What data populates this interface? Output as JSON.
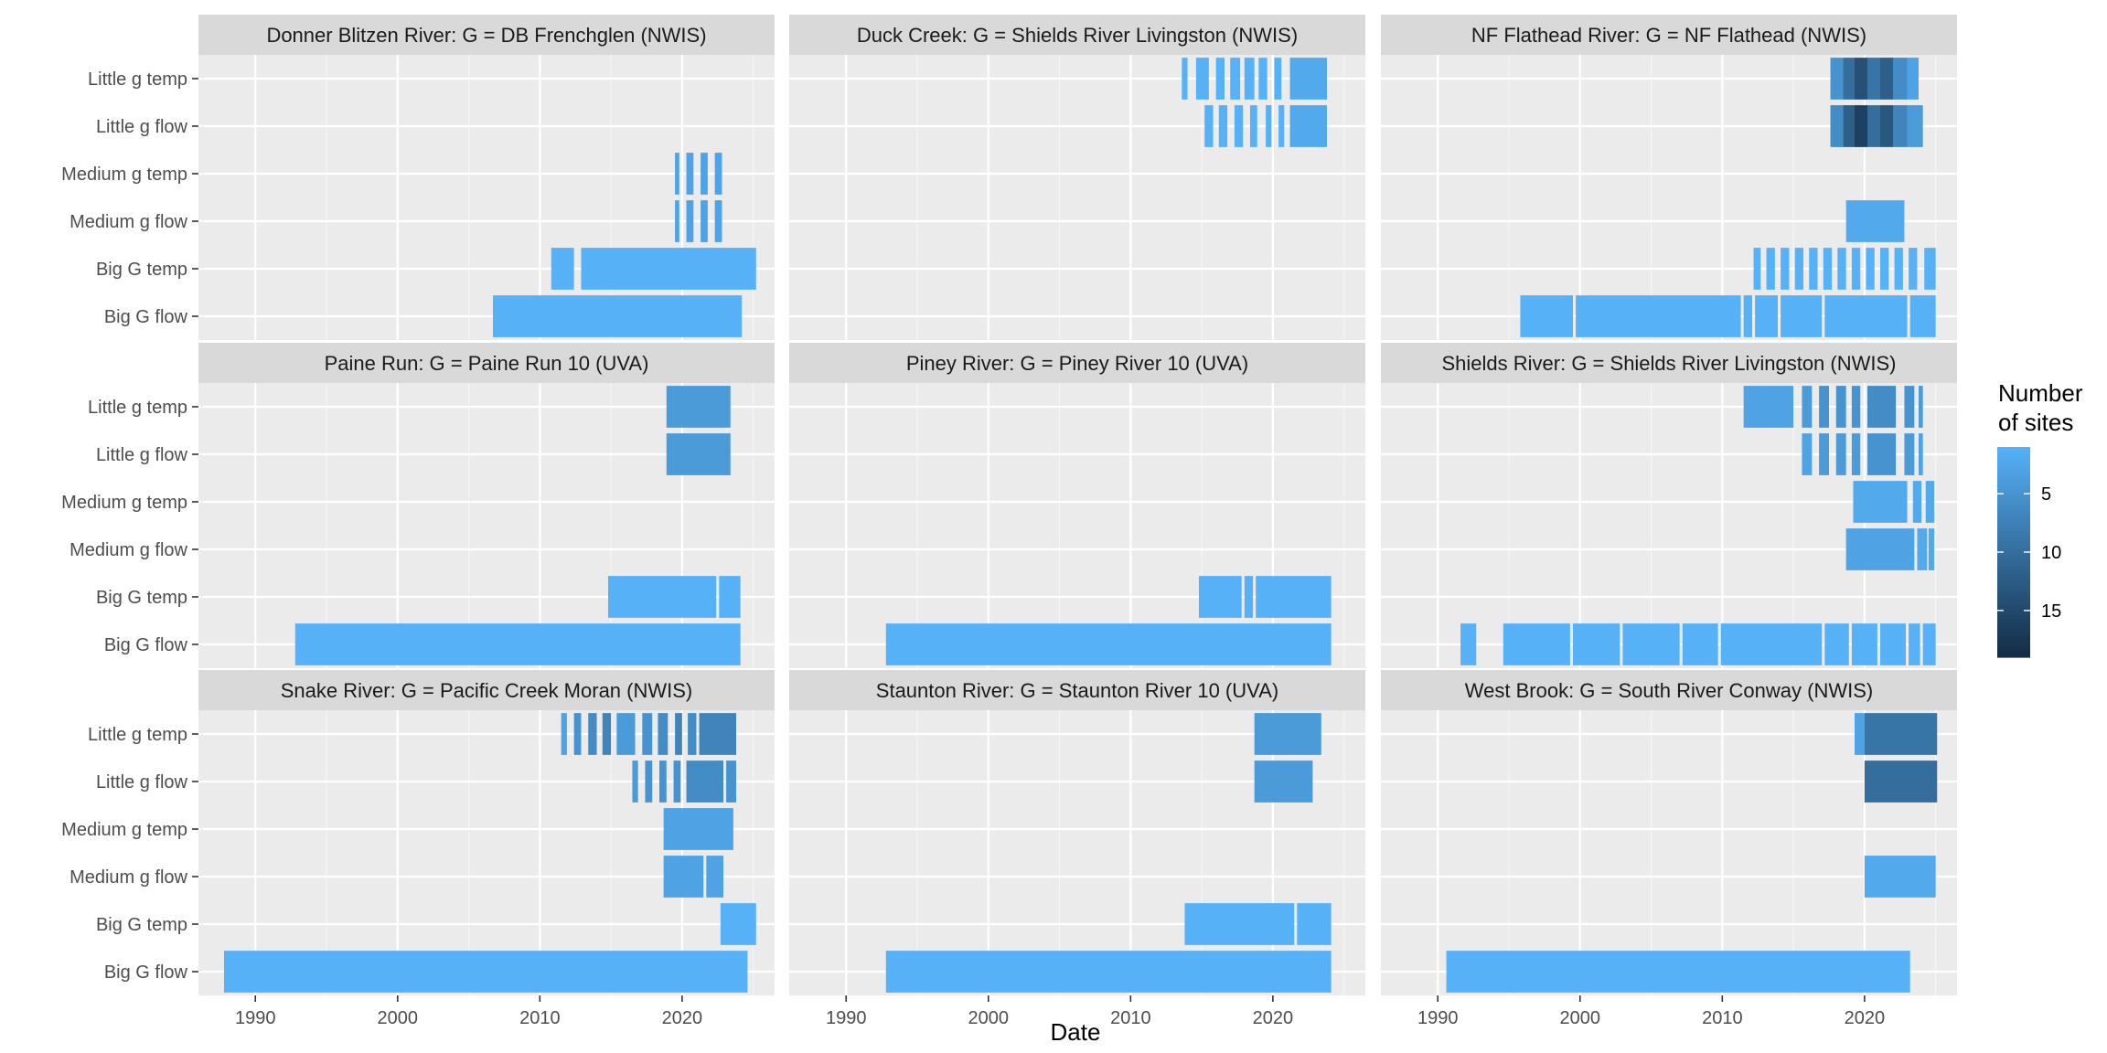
{
  "chart_data": {
    "type": "timeline-raster-facets",
    "xlabel": "Date",
    "x_ticks": [
      1990,
      2000,
      2010,
      2020
    ],
    "xlim": [
      1986,
      2026.5
    ],
    "row_labels": [
      "Little g temp",
      "Little g flow",
      "Medium g temp",
      "Medium g flow",
      "Big G temp",
      "Big G flow"
    ],
    "legend": {
      "title": [
        "Number",
        "of sites"
      ],
      "ticks": [
        5,
        10,
        15
      ],
      "range": [
        1,
        19
      ],
      "colors": {
        "low": "#56B1F7",
        "high": "#132B43"
      },
      "position": "right"
    },
    "grid": true,
    "panels": [
      {
        "title": "Donner Blitzen River: G = DB Frenchglen (NWIS)",
        "rows": {
          "Little g temp": [],
          "Little g flow": [],
          "Medium g temp": [
            [
              2019.5,
              2019.8,
              3
            ],
            [
              2020.3,
              2020.8,
              3
            ],
            [
              2021.3,
              2021.8,
              3
            ],
            [
              2022.3,
              2022.8,
              3
            ]
          ],
          "Medium g flow": [
            [
              2019.5,
              2019.8,
              3
            ],
            [
              2020.3,
              2020.8,
              3
            ],
            [
              2021.3,
              2021.8,
              3
            ],
            [
              2022.3,
              2022.8,
              3
            ]
          ],
          "Big G temp": [
            [
              2010.8,
              2012.4,
              1
            ],
            [
              2012.9,
              2025.2,
              1
            ]
          ],
          "Big G flow": [
            [
              2006.7,
              2024.2,
              1
            ]
          ]
        }
      },
      {
        "title": "Duck Creek: G = Shields River Livingston (NWIS)",
        "rows": {
          "Little g temp": [
            [
              2013.6,
              2014.0,
              1
            ],
            [
              2014.6,
              2015.5,
              1
            ],
            [
              2016.0,
              2016.6,
              1
            ],
            [
              2017.0,
              2017.7,
              1
            ],
            [
              2018.0,
              2018.7,
              1
            ],
            [
              2019.0,
              2019.6,
              1
            ],
            [
              2020.1,
              2020.6,
              1
            ],
            [
              2021.2,
              2023.8,
              2
            ]
          ],
          "Little g flow": [
            [
              2015.2,
              2015.8,
              1
            ],
            [
              2016.2,
              2016.8,
              1
            ],
            [
              2017.3,
              2017.9,
              1
            ],
            [
              2018.4,
              2018.9,
              1
            ],
            [
              2019.5,
              2019.9,
              1
            ],
            [
              2020.4,
              2020.8,
              1
            ],
            [
              2021.2,
              2023.8,
              2
            ]
          ],
          "Medium g temp": [],
          "Medium g flow": [],
          "Big G temp": [],
          "Big G flow": []
        }
      },
      {
        "title": "NF Flathead River: G = NF Flathead (NWIS)",
        "rows": {
          "Little g temp": [
            [
              2017.6,
              2018.5,
              5
            ],
            [
              2018.5,
              2019.3,
              10
            ],
            [
              2019.3,
              2020.2,
              14
            ],
            [
              2020.2,
              2021.1,
              9
            ],
            [
              2021.1,
              2022.0,
              12
            ],
            [
              2022.0,
              2023.0,
              6
            ],
            [
              2023.0,
              2023.8,
              3
            ]
          ],
          "Little g flow": [
            [
              2017.6,
              2018.5,
              6
            ],
            [
              2018.5,
              2019.3,
              12
            ],
            [
              2019.3,
              2020.2,
              16
            ],
            [
              2020.2,
              2021.1,
              10
            ],
            [
              2021.1,
              2022.0,
              13
            ],
            [
              2022.0,
              2023.0,
              7
            ],
            [
              2023.0,
              2024.1,
              4
            ]
          ],
          "Medium g temp": [],
          "Medium g flow": [
            [
              2018.7,
              2022.8,
              2
            ]
          ],
          "Big G temp": [
            [
              2012.2,
              2012.7,
              1
            ],
            [
              2013.1,
              2013.7,
              1
            ],
            [
              2014.1,
              2014.7,
              1
            ],
            [
              2015.1,
              2015.7,
              1
            ],
            [
              2016.1,
              2016.7,
              1
            ],
            [
              2017.1,
              2017.7,
              1
            ],
            [
              2018.1,
              2018.7,
              1
            ],
            [
              2019.1,
              2019.7,
              1
            ],
            [
              2020.1,
              2020.7,
              1
            ],
            [
              2021.1,
              2021.7,
              1
            ],
            [
              2022.1,
              2022.7,
              1
            ],
            [
              2023.1,
              2023.7,
              1
            ],
            [
              2024.2,
              2025.0,
              1
            ]
          ],
          "Big G flow": [
            [
              1995.8,
              1999.5,
              1
            ],
            [
              1999.7,
              2011.3,
              1
            ],
            [
              2011.5,
              2012.1,
              1
            ],
            [
              2012.3,
              2013.9,
              1
            ],
            [
              2014.1,
              2017.0,
              1
            ],
            [
              2017.2,
              2023.0,
              1
            ],
            [
              2023.2,
              2025.0,
              1
            ]
          ]
        }
      },
      {
        "title": "Paine Run: G = Paine Run 10 (UVA)",
        "rows": {
          "Little g temp": [
            [
              2018.9,
              2023.4,
              4
            ]
          ],
          "Little g flow": [
            [
              2018.9,
              2023.4,
              4
            ]
          ],
          "Medium g temp": [],
          "Medium g flow": [],
          "Big G temp": [
            [
              2014.8,
              2022.4,
              1
            ],
            [
              2022.6,
              2024.1,
              1
            ]
          ],
          "Big G flow": [
            [
              1992.8,
              2024.1,
              1
            ]
          ]
        }
      },
      {
        "title": "Piney River: G = Piney River 10 (UVA)",
        "rows": {
          "Little g temp": [],
          "Little g flow": [],
          "Medium g temp": [],
          "Medium g flow": [],
          "Big G temp": [
            [
              2014.8,
              2017.8,
              1
            ],
            [
              2018.0,
              2018.6,
              1
            ],
            [
              2018.8,
              2024.1,
              1
            ]
          ],
          "Big G flow": [
            [
              1992.8,
              2024.1,
              1
            ]
          ]
        }
      },
      {
        "title": "Shields River: G = Shields River Livingston (NWIS)",
        "rows": {
          "Little g temp": [
            [
              2011.5,
              2015.0,
              3
            ],
            [
              2015.6,
              2016.3,
              4
            ],
            [
              2016.8,
              2017.5,
              5
            ],
            [
              2018.0,
              2018.7,
              5
            ],
            [
              2019.1,
              2019.7,
              5
            ],
            [
              2020.2,
              2022.2,
              6
            ],
            [
              2022.8,
              2023.5,
              5
            ],
            [
              2023.8,
              2024.1,
              4
            ]
          ],
          "Little g flow": [
            [
              2015.6,
              2016.3,
              3
            ],
            [
              2016.8,
              2017.5,
              4
            ],
            [
              2018.0,
              2018.7,
              4
            ],
            [
              2019.1,
              2019.7,
              4
            ],
            [
              2020.2,
              2022.2,
              5
            ],
            [
              2022.8,
              2023.5,
              4
            ],
            [
              2023.8,
              2024.1,
              3
            ]
          ],
          "Medium g temp": [
            [
              2019.2,
              2023.0,
              2
            ],
            [
              2023.4,
              2024.0,
              2
            ],
            [
              2024.3,
              2024.9,
              2
            ]
          ],
          "Medium g flow": [
            [
              2018.7,
              2023.5,
              3
            ],
            [
              2023.7,
              2024.4,
              2
            ],
            [
              2024.5,
              2024.9,
              2
            ]
          ],
          "Big G temp": [],
          "Big G flow": [
            [
              1991.6,
              1992.7,
              1
            ],
            [
              1994.6,
              1999.3,
              1
            ],
            [
              1999.5,
              2002.8,
              1
            ],
            [
              2003.0,
              2007.0,
              1
            ],
            [
              2007.2,
              2009.7,
              1
            ],
            [
              2009.9,
              2017.0,
              1
            ],
            [
              2017.2,
              2018.9,
              1
            ],
            [
              2019.1,
              2020.9,
              1
            ],
            [
              2021.1,
              2022.9,
              1
            ],
            [
              2023.1,
              2023.9,
              1
            ],
            [
              2024.1,
              2025.0,
              1
            ]
          ]
        }
      },
      {
        "title": "Snake River: G = Pacific Creek Moran (NWIS)",
        "rows": {
          "Little g temp": [
            [
              2011.5,
              2011.9,
              3
            ],
            [
              2012.4,
              2012.9,
              5
            ],
            [
              2013.4,
              2014.0,
              6
            ],
            [
              2014.4,
              2015.0,
              7
            ],
            [
              2015.4,
              2016.7,
              4
            ],
            [
              2017.2,
              2017.9,
              5
            ],
            [
              2018.3,
              2019.0,
              6
            ],
            [
              2019.5,
              2020.0,
              7
            ],
            [
              2020.4,
              2021.0,
              6
            ],
            [
              2021.2,
              2023.8,
              7
            ]
          ],
          "Little g flow": [
            [
              2016.5,
              2016.9,
              4
            ],
            [
              2017.4,
              2017.9,
              5
            ],
            [
              2018.4,
              2018.9,
              5
            ],
            [
              2019.4,
              2019.9,
              5
            ],
            [
              2020.3,
              2022.9,
              6
            ],
            [
              2023.1,
              2023.8,
              5
            ]
          ],
          "Medium g temp": [
            [
              2018.7,
              2023.6,
              3
            ]
          ],
          "Medium g flow": [
            [
              2018.7,
              2021.5,
              3
            ],
            [
              2021.7,
              2022.9,
              3
            ]
          ],
          "Big G temp": [
            [
              2022.7,
              2025.2,
              1
            ]
          ],
          "Big G flow": [
            [
              1987.8,
              2024.6,
              1
            ]
          ]
        }
      },
      {
        "title": "Staunton River: G = Staunton River 10 (UVA)",
        "rows": {
          "Little g temp": [
            [
              2018.7,
              2023.4,
              4
            ]
          ],
          "Little g flow": [
            [
              2018.7,
              2022.8,
              4
            ]
          ],
          "Medium g temp": [],
          "Medium g flow": [],
          "Big G temp": [
            [
              2013.8,
              2021.5,
              1
            ],
            [
              2021.7,
              2024.1,
              1
            ]
          ],
          "Big G flow": [
            [
              1992.8,
              2024.1,
              1
            ]
          ]
        }
      },
      {
        "title": "West Brook: G = South River Conway (NWIS)",
        "rows": {
          "Little g temp": [
            [
              2019.3,
              2020.0,
              3
            ],
            [
              2020.0,
              2025.1,
              9
            ]
          ],
          "Little g flow": [
            [
              2020.0,
              2025.1,
              10
            ]
          ],
          "Medium g temp": [],
          "Medium g flow": [
            [
              2020.0,
              2025.0,
              2
            ]
          ],
          "Big G temp": [],
          "Big G flow": [
            [
              1990.6,
              2023.2,
              1
            ]
          ]
        }
      }
    ]
  }
}
